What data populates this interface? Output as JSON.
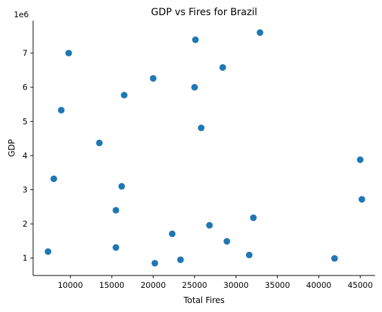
{
  "chart_data": {
    "type": "scatter",
    "title": "GDP vs Fires for Brazil",
    "xlabel": "Total Fires",
    "ylabel": "GDP",
    "y_offset_text": "1e6",
    "xlim": [
      5500,
      46800
    ],
    "ylim": [
      0.49,
      7.95
    ],
    "grid": false,
    "x_ticks": [
      10000,
      15000,
      20000,
      25000,
      30000,
      35000,
      40000,
      45000
    ],
    "x_tick_labels": [
      "10000",
      "15000",
      "20000",
      "25000",
      "30000",
      "35000",
      "40000",
      "45000"
    ],
    "y_ticks": [
      1,
      2,
      3,
      4,
      5,
      6,
      7
    ],
    "y_tick_labels": [
      "1",
      "2",
      "3",
      "4",
      "5",
      "6",
      "7"
    ],
    "marker_color": "#1f77b4",
    "points": [
      {
        "x": 7300,
        "y": 1.19
      },
      {
        "x": 8000,
        "y": 3.32
      },
      {
        "x": 8900,
        "y": 5.33
      },
      {
        "x": 9800,
        "y": 7.0
      },
      {
        "x": 13500,
        "y": 4.37
      },
      {
        "x": 15500,
        "y": 2.4
      },
      {
        "x": 15500,
        "y": 1.31
      },
      {
        "x": 16200,
        "y": 3.1
      },
      {
        "x": 16500,
        "y": 5.77
      },
      {
        "x": 20000,
        "y": 6.26
      },
      {
        "x": 20200,
        "y": 0.85
      },
      {
        "x": 22300,
        "y": 1.71
      },
      {
        "x": 23300,
        "y": 0.95
      },
      {
        "x": 25000,
        "y": 6.0
      },
      {
        "x": 25100,
        "y": 7.39
      },
      {
        "x": 25800,
        "y": 4.81
      },
      {
        "x": 26800,
        "y": 1.96
      },
      {
        "x": 28400,
        "y": 6.58
      },
      {
        "x": 28900,
        "y": 1.49
      },
      {
        "x": 31600,
        "y": 1.09
      },
      {
        "x": 32100,
        "y": 2.18
      },
      {
        "x": 32900,
        "y": 7.6
      },
      {
        "x": 41900,
        "y": 0.99
      },
      {
        "x": 45000,
        "y": 3.88
      },
      {
        "x": 45200,
        "y": 2.72
      }
    ]
  }
}
